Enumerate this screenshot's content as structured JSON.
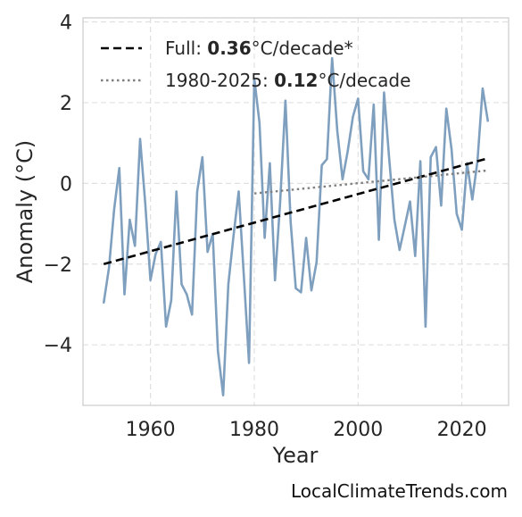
{
  "chart_data": {
    "type": "line",
    "xlabel": "Year",
    "ylabel": "Anomaly (°C)",
    "xlim": [
      1947,
      2029
    ],
    "ylim": [
      -5.5,
      4.1
    ],
    "xticks": [
      1960,
      1980,
      2000,
      2020
    ],
    "yticks": [
      -4,
      -2,
      0,
      2,
      4
    ],
    "ytick_labels": [
      "−4",
      "−2",
      "0",
      "2",
      "4"
    ],
    "grid": true,
    "legend_position": "top-left",
    "colors": {
      "series": "#7f9fbf",
      "full_trend": "#000000",
      "recent_trend": "#808080",
      "grid": "#e0e0e0",
      "frame": "#cccccc"
    },
    "series": [
      {
        "x": [
          1951,
          1952,
          1953,
          1954,
          1955,
          1956,
          1957,
          1958,
          1959,
          1960,
          1961,
          1962,
          1963,
          1964,
          1965,
          1966,
          1967,
          1968,
          1969,
          1970,
          1971,
          1972,
          1973,
          1974,
          1975,
          1976,
          1977,
          1978,
          1979,
          1980,
          1981,
          1982,
          1983,
          1984,
          1985,
          1986,
          1987,
          1988,
          1989,
          1990,
          1991,
          1992,
          1993,
          1994,
          1995,
          1996,
          1997,
          1998,
          1999,
          2000,
          2001,
          2002,
          2003,
          2004,
          2005,
          2006,
          2007,
          2008,
          2009,
          2010,
          2011,
          2012,
          2013,
          2014,
          2015,
          2016,
          2017,
          2018,
          2019,
          2020,
          2021,
          2022,
          2023,
          2024,
          2025
        ],
        "y": [
          -2.95,
          -2.1,
          -0.65,
          0.38,
          -2.75,
          -0.9,
          -1.55,
          1.1,
          -0.5,
          -2.4,
          -1.75,
          -1.45,
          -3.55,
          -2.9,
          -0.2,
          -2.5,
          -2.75,
          -3.25,
          -0.2,
          0.65,
          -1.7,
          -1.25,
          -4.15,
          -5.25,
          -2.5,
          -1.3,
          -0.2,
          -2.3,
          -4.45,
          2.6,
          1.5,
          -1.35,
          0.5,
          -2.4,
          -0.45,
          2.05,
          -0.95,
          -2.6,
          -2.7,
          -1.35,
          -2.65,
          -1.95,
          0.45,
          0.6,
          3.1,
          1.3,
          0.1,
          0.8,
          1.65,
          2.1,
          0.3,
          0.1,
          1.95,
          -1.4,
          2.25,
          0.6,
          -0.9,
          -1.65,
          -1.05,
          -0.45,
          -1.8,
          0.55,
          -3.55,
          0.65,
          0.9,
          -0.55,
          1.85,
          0.85,
          -0.75,
          -1.15,
          0.5,
          -0.4,
          0.55,
          2.35,
          1.55
        ]
      }
    ],
    "trendlines": [
      {
        "label_prefix": "Full: ",
        "label_value": "0.36",
        "label_suffix": "°C/decade*",
        "style": "dashed",
        "x": [
          1951,
          2025
        ],
        "y": [
          -2.0,
          0.62
        ]
      },
      {
        "label_prefix": "1980-2025: ",
        "label_value": "0.12",
        "label_suffix": "°C/decade",
        "style": "dotted",
        "x": [
          1980,
          2025
        ],
        "y": [
          -0.25,
          0.32
        ]
      }
    ]
  },
  "watermark": "LocalClimateTrends.com"
}
